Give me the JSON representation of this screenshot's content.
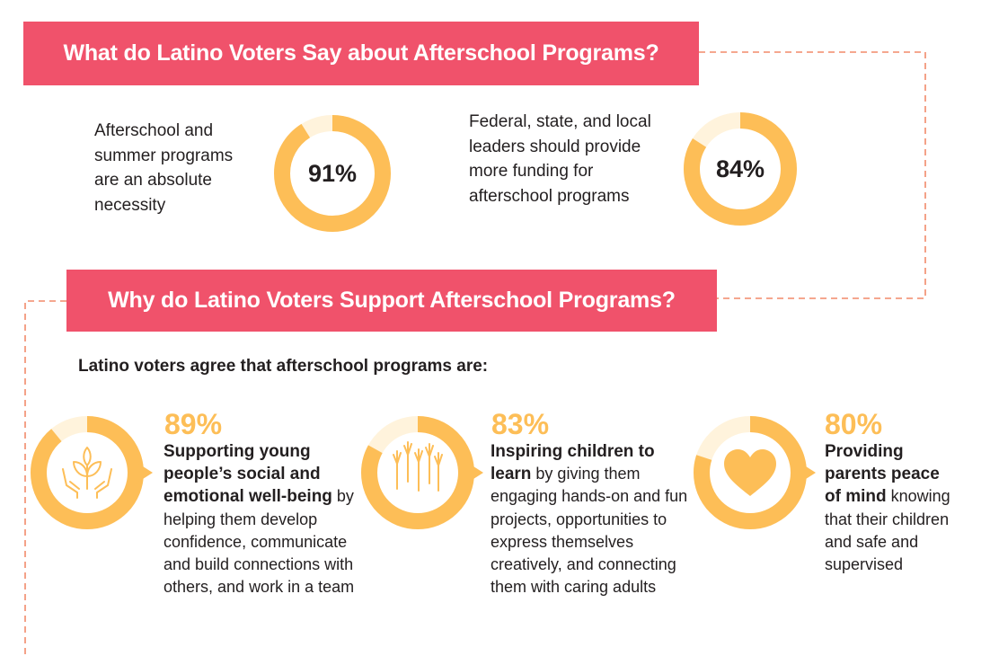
{
  "section1": {
    "title": "What do Latino Voters Say about Afterschool Programs?",
    "stats": [
      {
        "percent_label": "91%",
        "value": 91,
        "text": "Afterschool and summer programs are an absolute necessity"
      },
      {
        "percent_label": "84%",
        "value": 84,
        "text": "Federal, state, and local leaders should provide more funding for afterschool programs"
      }
    ]
  },
  "section2": {
    "title": "Why do Latino Voters Support Afterschool Programs?",
    "subtitle": "Latino voters agree that afterschool programs are:",
    "reasons": [
      {
        "percent_label": "89%",
        "value": 89,
        "icon": "hands-plant-icon",
        "bold": "Supporting young people’s social and emotional well-being",
        "rest": " by helping them develop confidence, communicate and build connections with others, and work in a team"
      },
      {
        "percent_label": "83%",
        "value": 83,
        "icon": "raised-hands-icon",
        "bold": "Inspiring children to learn",
        "rest": " by giving them engaging hands-on and fun projects, opportunities to express themselves creatively, and connecting them with caring adults"
      },
      {
        "percent_label": "80%",
        "value": 80,
        "icon": "heart-icon",
        "bold": "Providing parents peace of mind",
        "rest": " knowing that their children and safe and supervised"
      }
    ]
  },
  "colors": {
    "banner": "#f0526b",
    "accent": "#fdbe57",
    "connector": "#f28a6a",
    "text": "#231f20"
  }
}
